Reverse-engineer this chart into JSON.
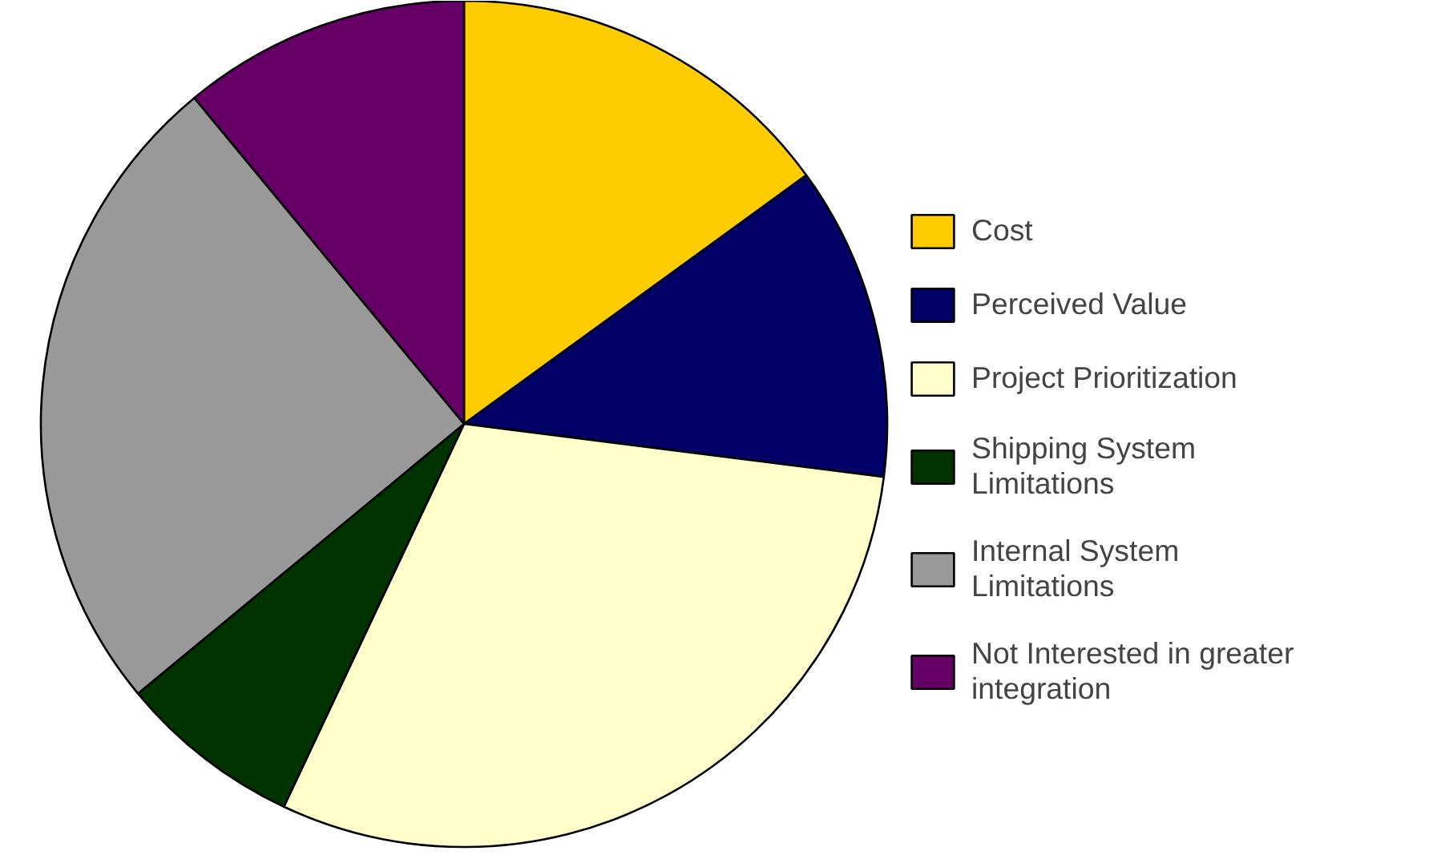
{
  "chart_data": {
    "type": "pie",
    "categories": [
      "Cost",
      "Perceived Value",
      "Project Prioritization",
      "Shipping System Limitations",
      "Internal System Limitations",
      "Not Interested in greater integration"
    ],
    "values": [
      15,
      12,
      30,
      7,
      25,
      11
    ],
    "colors": [
      "#ffcc00",
      "#000066",
      "#ffffcc",
      "#003300",
      "#999999",
      "#660066"
    ],
    "legend": "right"
  }
}
